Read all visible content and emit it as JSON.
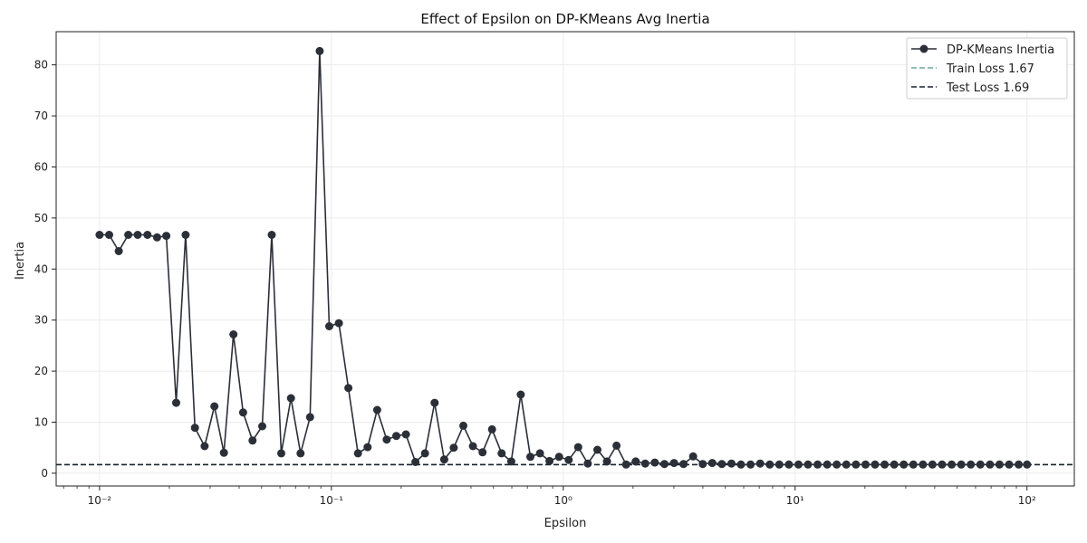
{
  "chart_data": {
    "type": "line",
    "title": "Effect of Epsilon on DP-KMeans Avg Inertia",
    "xlabel": "Epsilon",
    "ylabel": "Inertia",
    "x_scale": "log",
    "xlim": [
      0.0065,
      160
    ],
    "ylim": [
      -2.5,
      86.5
    ],
    "grid": true,
    "legend_position": "top-right",
    "x_ticks": [
      0.01,
      0.1,
      1,
      10,
      100
    ],
    "x_tick_labels": [
      "10⁻²",
      "10⁻¹",
      "10⁰",
      "10¹",
      "10²"
    ],
    "y_ticks": [
      0,
      10,
      20,
      30,
      40,
      50,
      60,
      70,
      80
    ],
    "y_tick_labels": [
      "0",
      "10",
      "20",
      "30",
      "40",
      "50",
      "60",
      "70",
      "80"
    ],
    "series": [
      {
        "name": "DP-KMeans Inertia",
        "style": "line-marker",
        "color": "#2b2f38",
        "x": [
          0.01,
          0.011,
          0.0121,
          0.0133,
          0.0146,
          0.0161,
          0.0177,
          0.0194,
          0.0214,
          0.0235,
          0.0258,
          0.0284,
          0.0313,
          0.0344,
          0.0378,
          0.0416,
          0.0457,
          0.0503,
          0.0553,
          0.0608,
          0.0669,
          0.0736,
          0.0809,
          0.089,
          0.0979,
          0.1077,
          0.1184,
          0.1302,
          0.1432,
          0.1575,
          0.1732,
          0.1905,
          0.2095,
          0.2304,
          0.2534,
          0.2787,
          0.3065,
          0.3371,
          0.3707,
          0.4077,
          0.4484,
          0.4931,
          0.5423,
          0.5964,
          0.6559,
          0.7213,
          0.7933,
          0.8724,
          0.9594,
          1.0551,
          1.1603,
          1.2761,
          1.4034,
          1.5434,
          1.6973,
          1.8666,
          2.0528,
          2.2576,
          2.4828,
          2.7305,
          3.0029,
          3.3024,
          3.6318,
          3.9941,
          4.3925,
          4.8307,
          5.3125,
          5.8425,
          6.4253,
          7.0662,
          7.7711,
          8.5463,
          9.3988,
          10.336,
          11.368,
          12.502,
          13.749,
          15.12,
          16.629,
          18.287,
          20.112,
          22.118,
          24.324,
          26.751,
          29.419,
          32.354,
          35.581,
          39.13,
          43.034,
          47.327,
          52.048,
          57.24,
          62.95,
          69.229,
          76.135,
          83.73,
          92.082,
          100.0
        ],
        "y": [
          46.7,
          46.7,
          43.5,
          46.7,
          46.7,
          46.7,
          46.2,
          46.5,
          13.8,
          46.7,
          8.9,
          5.3,
          13.1,
          4.0,
          27.2,
          11.9,
          6.4,
          9.2,
          46.7,
          3.9,
          14.7,
          3.9,
          11.0,
          82.7,
          28.8,
          29.4,
          16.7,
          3.9,
          5.1,
          12.4,
          6.6,
          7.3,
          7.6,
          2.2,
          3.9,
          13.8,
          2.7,
          5.0,
          9.3,
          5.3,
          4.1,
          8.6,
          3.9,
          2.3,
          15.4,
          3.2,
          3.9,
          2.4,
          3.2,
          2.6,
          5.1,
          1.9,
          4.6,
          2.3,
          5.4,
          1.7,
          2.3,
          1.9,
          2.1,
          1.8,
          2.0,
          1.8,
          3.3,
          1.8,
          2.0,
          1.8,
          1.9,
          1.7,
          1.7,
          1.9,
          1.7,
          1.7,
          1.7,
          1.7,
          1.7,
          1.7,
          1.7,
          1.7,
          1.7,
          1.7,
          1.7,
          1.7,
          1.7,
          1.7,
          1.7,
          1.7,
          1.7,
          1.7,
          1.7,
          1.7,
          1.7,
          1.7,
          1.7,
          1.7,
          1.7,
          1.7,
          1.7,
          1.7
        ]
      },
      {
        "name": "Train Loss 1.67",
        "style": "hline-dashed",
        "color": "#6fa89a",
        "value": 1.67
      },
      {
        "name": "Test Loss 1.69",
        "style": "hline-dashed",
        "color": "#1c2230",
        "value": 1.69
      }
    ]
  }
}
